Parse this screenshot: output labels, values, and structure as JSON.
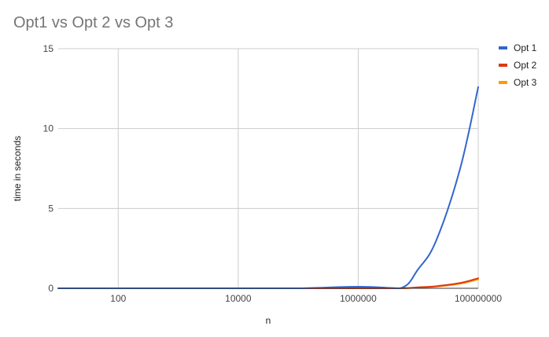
{
  "chart_title": "Opt1 vs Opt 2 vs Opt 3",
  "chart_data": {
    "type": "line",
    "title": "Opt1 vs Opt 2 vs Opt 3",
    "xlabel": "n",
    "ylabel": "time in seconds",
    "x_scale": "log10",
    "x_ticks": [
      100,
      10000,
      1000000,
      100000000
    ],
    "x_tick_labels": [
      "100",
      "10000",
      "1000000",
      "100000000"
    ],
    "y_ticks": [
      0,
      5,
      10,
      15
    ],
    "y_tick_labels": [
      "0",
      "5",
      "10",
      "15"
    ],
    "xlim": [
      10,
      100000000
    ],
    "ylim": [
      0,
      15
    ],
    "grid": true,
    "legend_position": "right",
    "x": [
      10,
      100,
      1000,
      10000,
      100000,
      1000000,
      5000000,
      10000000,
      20000000,
      50000000,
      100000000
    ],
    "series": [
      {
        "name": "Opt 1",
        "color": "#3366cc",
        "values": [
          0,
          0,
          0,
          0,
          0,
          0.1,
          0,
          1.2,
          3.0,
          7.5,
          12.6
        ]
      },
      {
        "name": "Opt 2",
        "color": "#dc3912",
        "values": [
          0,
          0,
          0,
          0,
          0,
          0,
          0,
          0.06,
          0.13,
          0.33,
          0.63
        ]
      },
      {
        "name": "Opt 3",
        "color": "#ff9900",
        "values": [
          0,
          0,
          0,
          0,
          0,
          0,
          0,
          0.05,
          0.11,
          0.29,
          0.56
        ]
      }
    ]
  }
}
